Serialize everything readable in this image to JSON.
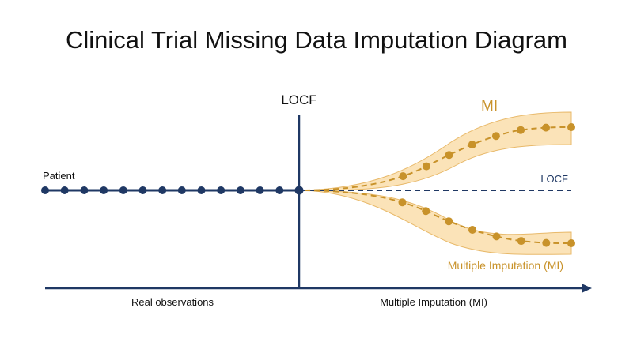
{
  "title": "Clinical Trial Missing Data Imputation Diagram",
  "labels": {
    "patient": "Patient",
    "locf_top": "LOCF",
    "locf_line": "LOCF",
    "mi_top": "MI",
    "mi_bottom": "Multiple Imputation (MI)",
    "axis_left": "Real observations",
    "axis_right": "Multiple Imputation (MI)"
  },
  "colors": {
    "navy": "#1f3864",
    "gold": "#c8922a",
    "band": "#fbe3b8",
    "band_edge": "#e8b96a"
  },
  "observations": {
    "count": 14
  },
  "mi_paths": {
    "upper_points": 8,
    "lower_points": 8
  }
}
